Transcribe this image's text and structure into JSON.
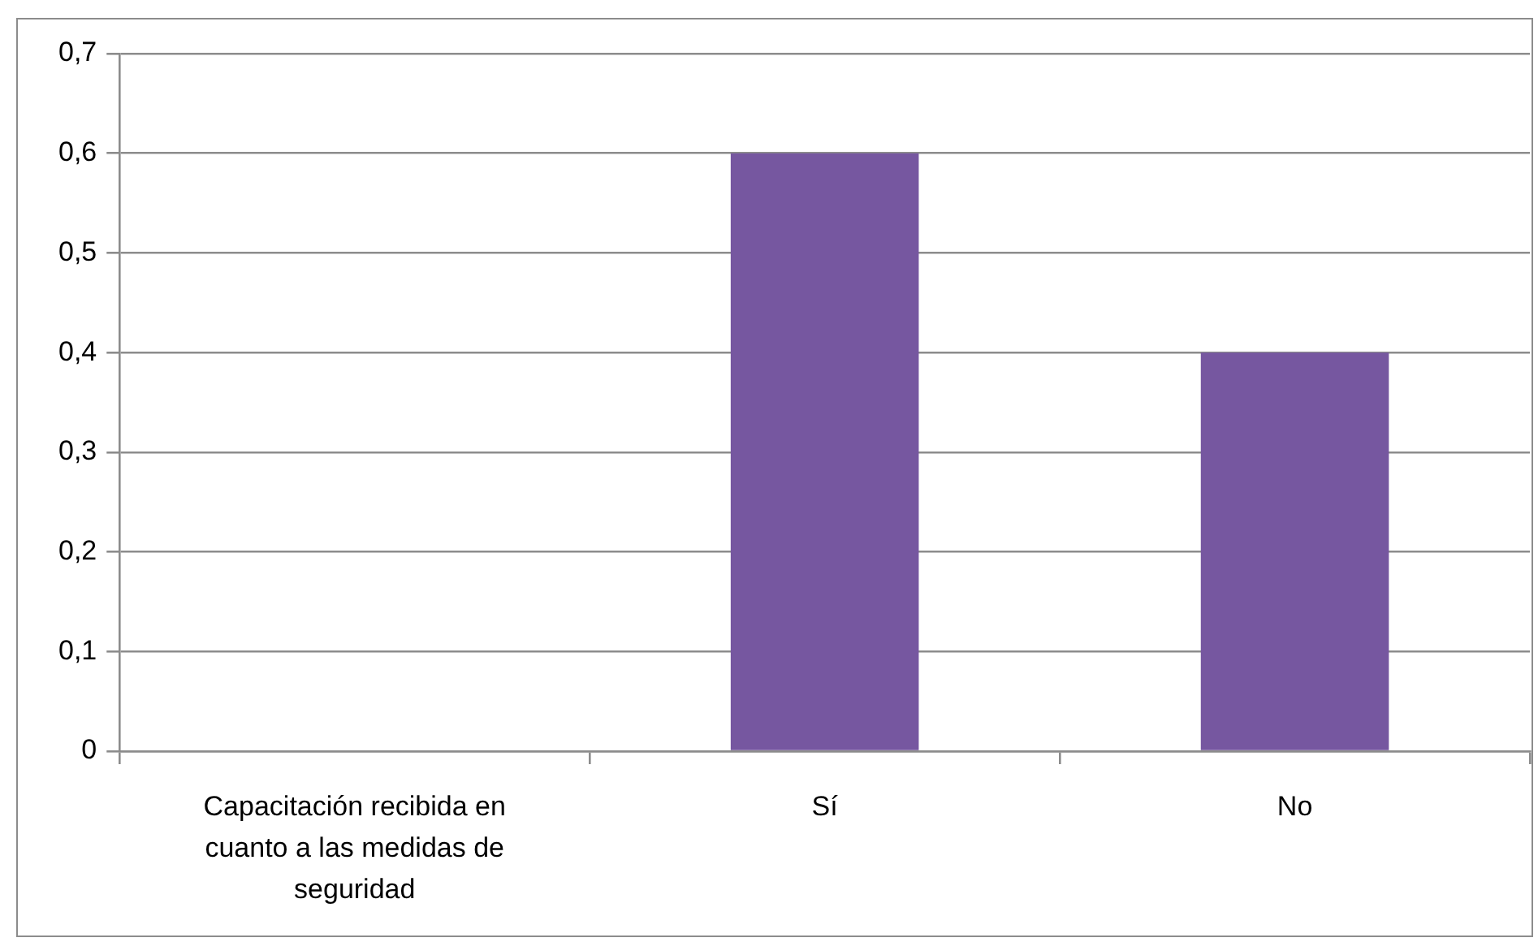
{
  "chart_data": {
    "type": "bar",
    "categories": [
      "Capacitación recibida en cuanto a las medidas de seguridad",
      "Sí",
      "No"
    ],
    "values": [
      null,
      0.6,
      0.4
    ],
    "color": "#7657a0",
    "ylim": [
      0,
      0.7
    ],
    "yticks": [
      0,
      {
        "value": 0.1,
        "label": "0,1"
      },
      {
        "value": 0.2,
        "label": "0,2"
      },
      {
        "value": 0.3,
        "label": "0,3"
      },
      {
        "value": 0.4,
        "label": "0,4"
      },
      {
        "value": 0.5,
        "label": "0,5"
      },
      {
        "value": 0.6,
        "label": "0,6"
      },
      {
        "value": 0.7,
        "label": "0,7"
      }
    ],
    "grid": "y"
  }
}
